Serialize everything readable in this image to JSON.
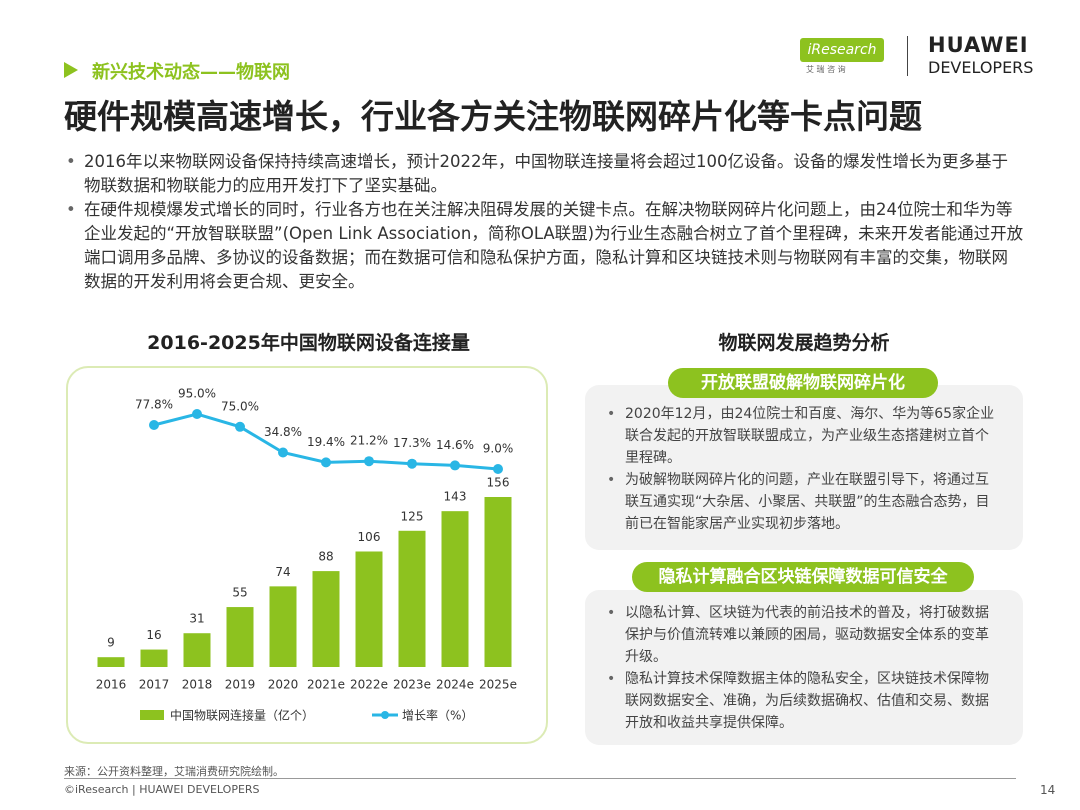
{
  "header": {
    "section": "新兴技术动态——物联网",
    "title": "硬件规模高速增长，行业各方关注物联网碎片化等卡点问题",
    "logo_left": "iResearch",
    "logo_left_sub": "艾 瑞 咨 询",
    "logo_right_1": "HUAWEI",
    "logo_right_2": "DEVELOPERS"
  },
  "bullets": [
    "2016年以来物联网设备保持持续高速增长，预计2022年，中国物联连接量将会超过100亿设备。设备的爆发性增长为更多基于物联数据和物联能力的应用开发打下了坚实基础。",
    "在硬件规模爆发式增长的同时，行业各方也在关注解决阻碍发展的关键卡点。在解决物联网碎片化问题上，由24位院士和华为等企业发起的“开放智联联盟”(Open Link Association，简称OLA联盟)为行业生态融合树立了首个里程碑，未来开发者能通过开放端口调用多品牌、多协议的设备数据；而在数据可信和隐私保护方面，隐私计算和区块链技术则与物联网有丰富的交集，物联网数据的开发利用将会更合规、更安全。"
  ],
  "chart_data": {
    "type": "bar",
    "title": "2016-2025年中国物联网设备连接量",
    "categories": [
      "2016",
      "2017",
      "2018",
      "2019",
      "2020",
      "2021e",
      "2022e",
      "2023e",
      "2024e",
      "2025e"
    ],
    "series": [
      {
        "name": "中国物联网连接量（亿个）",
        "color": "#8dc21f",
        "values": [
          9,
          16,
          31,
          55,
          74,
          88,
          106,
          125,
          143,
          156
        ]
      },
      {
        "name": "增长率（%）",
        "type": "line",
        "axis": "y2",
        "color": "#29b6e5",
        "values": [
          null,
          77.8,
          95.0,
          75.0,
          34.8,
          19.4,
          21.2,
          17.3,
          14.6,
          9.0
        ],
        "value_labels": [
          null,
          "77.8%",
          "95.0%",
          "75.0%",
          "34.8%",
          "19.4%",
          "21.2%",
          "17.3%",
          "14.6%",
          "9.0%"
        ]
      }
    ]
  },
  "analysis": {
    "title": "物联网发展趋势分析",
    "panels": [
      {
        "label": "开放联盟破解物联网碎片化",
        "bullets": [
          "2020年12月，由24位院士和百度、海尔、华为等65家企业联合发起的开放智联联盟成立，为产业级生态搭建树立首个里程碑。",
          "为破解物联网碎片化的问题，产业在联盟引导下，将通过互联互通实现“大杂居、小聚居、共联盟”的生态融合态势，目前已在智能家居产业实现初步落地。"
        ]
      },
      {
        "label": "隐私计算融合区块链保障数据可信安全",
        "bullets": [
          "以隐私计算、区块链为代表的前沿技术的普及，将打破数据保护与价值流转难以兼顾的困局，驱动数据安全体系的变革升级。",
          "隐私计算技术保障数据主体的隐私安全，区块链技术保障物联网数据安全、准确，为后续数据确权、估值和交易、数据开放和收益共享提供保障。"
        ]
      }
    ]
  },
  "footer": {
    "source": "来源：公开资料整理，艾瑞消费研究院绘制。",
    "copyright": "©iResearch | HUAWEI DEVELOPERS",
    "page": "14"
  }
}
